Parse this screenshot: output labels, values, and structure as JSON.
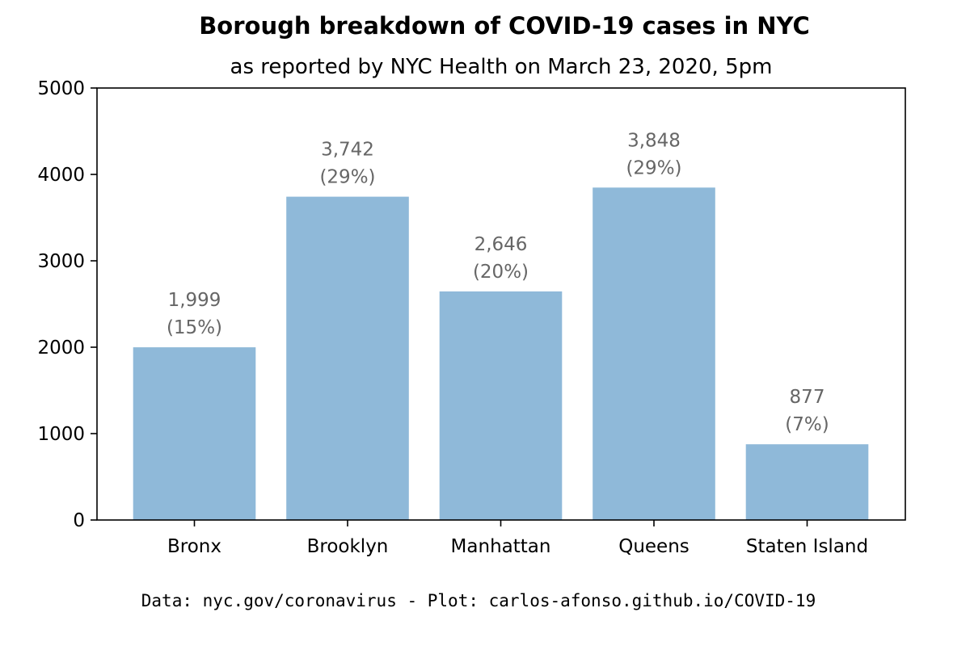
{
  "chart_data": {
    "type": "bar",
    "title": "Borough breakdown of COVID-19 cases in NYC",
    "subtitle": "as reported by NYC Health on March 23, 2020, 5pm",
    "xlabel": "",
    "ylabel": "",
    "categories": [
      "Bronx",
      "Brooklyn",
      "Manhattan",
      "Queens",
      "Staten Island"
    ],
    "values": [
      1999,
      3742,
      2646,
      3848,
      877
    ],
    "value_labels": [
      "1,999",
      "3,742",
      "2,646",
      "3,848",
      "877"
    ],
    "percent_labels": [
      "(15%)",
      "(29%)",
      "(20%)",
      "(29%)",
      "(7%)"
    ],
    "ylim": [
      0,
      5000
    ],
    "yticks": [
      0,
      1000,
      2000,
      3000,
      4000,
      5000
    ],
    "ytick_labels": [
      "0",
      "1000",
      "2000",
      "3000",
      "4000",
      "5000"
    ],
    "grid": false,
    "legend": "none",
    "bar_color": "#8fb9d9",
    "annotation_color": "#666666"
  },
  "footer": {
    "text": "Data: nyc.gov/coronavirus - Plot: carlos-afonso.github.io/COVID-19"
  }
}
